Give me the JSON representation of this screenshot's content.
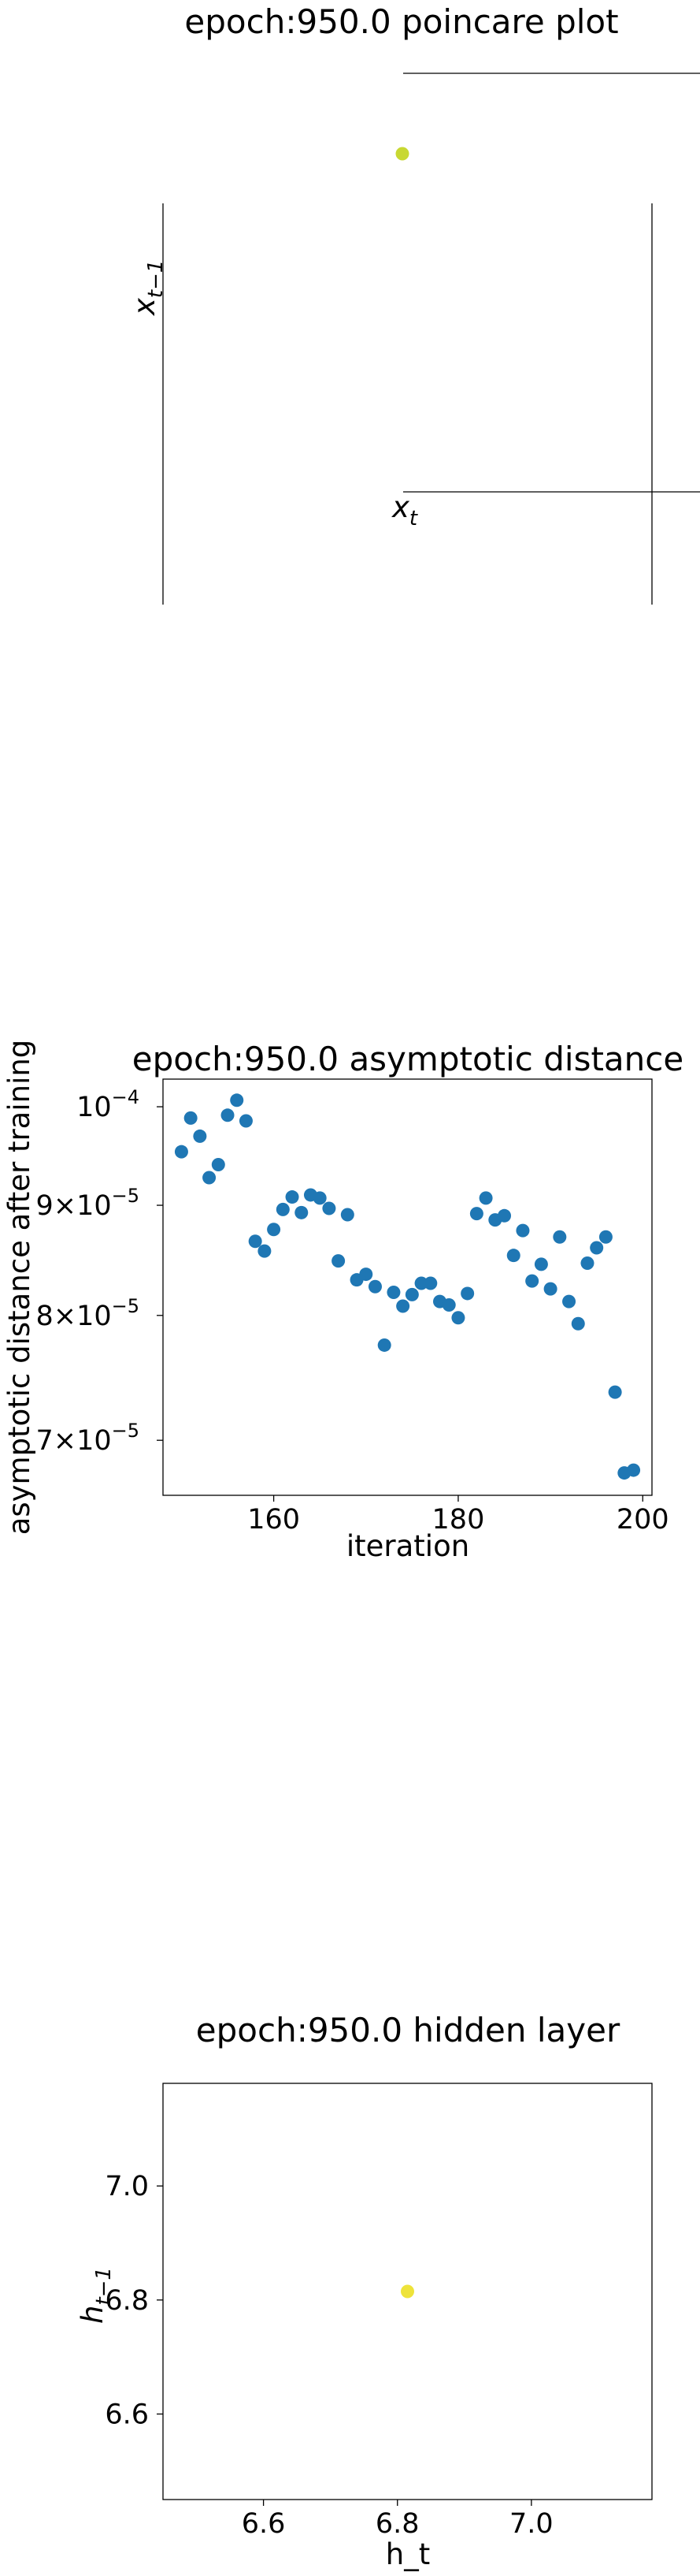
{
  "chart_data": [
    {
      "type": "scatter",
      "title": "epoch:950.0 poincare plot",
      "xlabel_latex": "x_t",
      "ylabel_latex": "x_{t-1}",
      "xlabel_base": "x",
      "xlabel_sub": "t",
      "ylabel_base": "x",
      "ylabel_sub": "t−1",
      "points": [
        {
          "x": 0,
          "y": 0
        }
      ],
      "point_color": "#c8d832"
    },
    {
      "type": "scatter",
      "title": "epoch:950.0 asymptotic distance",
      "xlabel": "iteration",
      "ylabel": "asymptotic distance after training",
      "yscale": "log",
      "xlim": [
        148,
        201
      ],
      "ylim": [
        6.6e-05,
        0.000103
      ],
      "xticks": [
        160,
        180,
        200
      ],
      "yticks": [
        {
          "value": 0.0001,
          "label_base": "10",
          "label_exp": "−4"
        },
        {
          "value": 9e-05,
          "label_base": "9×10",
          "label_exp": "−5"
        },
        {
          "value": 8e-05,
          "label_base": "8×10",
          "label_exp": "−5"
        },
        {
          "value": 7e-05,
          "label_base": "7×10",
          "label_exp": "−5"
        }
      ],
      "point_color": "#1f77b4",
      "x": [
        150,
        151,
        152,
        153,
        154,
        155,
        156,
        157,
        158,
        159,
        160,
        161,
        162,
        163,
        164,
        165,
        166,
        167,
        168,
        169,
        170,
        171,
        172,
        173,
        174,
        175,
        176,
        177,
        178,
        179,
        180,
        181,
        182,
        183,
        184,
        185,
        186,
        187,
        188,
        189,
        190,
        191,
        192,
        193,
        194,
        195,
        196,
        197,
        198,
        199
      ],
      "y": [
        9.53e-05,
        9.88e-05,
        9.69e-05,
        9.27e-05,
        9.4e-05,
        9.91e-05,
        0.0001007,
        9.85e-05,
        8.66e-05,
        8.57e-05,
        8.77e-05,
        8.96e-05,
        9.08e-05,
        8.93e-05,
        9.1e-05,
        9.07e-05,
        8.97e-05,
        8.48e-05,
        8.91e-05,
        8.31e-05,
        8.36e-05,
        8.25e-05,
        7.75e-05,
        8.2e-05,
        8.08e-05,
        8.18e-05,
        8.28e-05,
        8.28e-05,
        8.12e-05,
        8.09e-05,
        7.98e-05,
        8.19e-05,
        8.92e-05,
        9.07e-05,
        8.86e-05,
        8.9e-05,
        8.53e-05,
        8.76e-05,
        8.3e-05,
        8.45e-05,
        8.23e-05,
        8.7e-05,
        8.12e-05,
        7.93e-05,
        8.46e-05,
        8.6e-05,
        8.7e-05,
        7.37e-05,
        6.76e-05,
        6.78e-05
      ]
    },
    {
      "type": "scatter",
      "title": "epoch:950.0 hidden layer",
      "xlabel": "h_t",
      "ylabel_base": "h",
      "ylabel_sub": "t−1",
      "xlim": [
        6.45,
        7.18
      ],
      "ylim": [
        6.45,
        7.18
      ],
      "xticks": [
        6.6,
        6.8,
        7.0
      ],
      "yticks": [
        6.6,
        6.8,
        7.0
      ],
      "xtick_labels": [
        "6.6",
        "6.8",
        "7.0"
      ],
      "ytick_labels": [
        "6.6",
        "6.8",
        "7.0"
      ],
      "points": [
        {
          "x": 6.815,
          "y": 6.815
        }
      ],
      "point_color": "#eee33a"
    }
  ]
}
